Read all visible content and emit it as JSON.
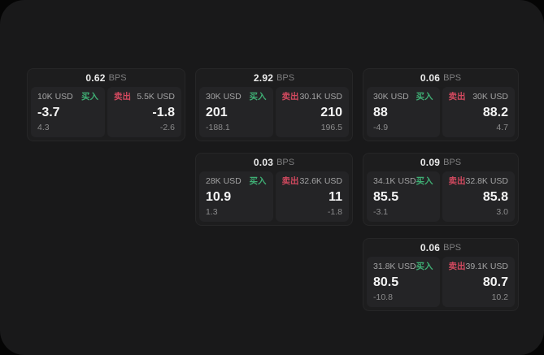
{
  "labels": {
    "bps_unit": "BPS",
    "buy": "买入",
    "sell": "卖出"
  },
  "colors": {
    "surface_background": "#19191a",
    "card_background": "#1d1d1e",
    "panel_background": "#242426",
    "buy_green": "#3fae74",
    "sell_red": "#d2495f"
  },
  "cards": [
    {
      "bps": "0.62",
      "buy": {
        "amount": "10K USD",
        "price": "-3.7",
        "change": "4.3"
      },
      "sell": {
        "amount": "5.5K USD",
        "price": "-1.8",
        "change": "-2.6"
      }
    },
    {
      "bps": "2.92",
      "buy": {
        "amount": "30K USD",
        "price": "201",
        "change": "-188.1"
      },
      "sell": {
        "amount": "30.1K USD",
        "price": "210",
        "change": "196.5"
      }
    },
    {
      "bps": "0.06",
      "buy": {
        "amount": "30K USD",
        "price": "88",
        "change": "-4.9"
      },
      "sell": {
        "amount": "30K USD",
        "price": "88.2",
        "change": "4.7"
      }
    },
    {
      "bps": "0.03",
      "buy": {
        "amount": "28K USD",
        "price": "10.9",
        "change": "1.3"
      },
      "sell": {
        "amount": "32.6K USD",
        "price": "11",
        "change": "-1.8"
      }
    },
    {
      "bps": "0.09",
      "buy": {
        "amount": "34.1K USD",
        "price": "85.5",
        "change": "-3.1"
      },
      "sell": {
        "amount": "32.8K USD",
        "price": "85.8",
        "change": "3.0"
      }
    },
    {
      "bps": "0.06",
      "buy": {
        "amount": "31.8K USD",
        "price": "80.5",
        "change": "-10.8"
      },
      "sell": {
        "amount": "39.1K USD",
        "price": "80.7",
        "change": "10.2"
      }
    }
  ]
}
